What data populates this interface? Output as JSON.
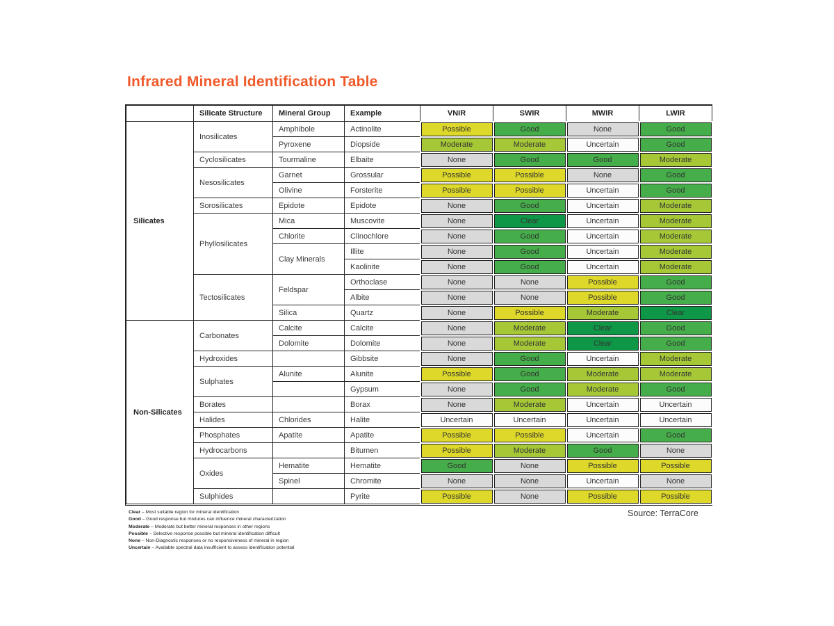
{
  "title": "Infrared Mineral Identification Table",
  "source": "Source: TerraCore",
  "colors": {
    "title-accent": "#f05a2b",
    "rating-possible": "#ddd829",
    "rating-good": "#45ad49",
    "rating-moderate": "#a6c837",
    "rating-none": "#d9d9d9",
    "rating-uncertain": "#fcfcfc",
    "rating-clear": "#0f9748"
  },
  "table": {
    "headers": {
      "category": "",
      "structure": "Silicate Structure",
      "group": "Mineral Group",
      "example": "Example",
      "vnir": "VNIR",
      "swir": "SWIR",
      "mwir": "MWIR",
      "lwir": "LWIR"
    },
    "rows": [
      {
        "category": "Silicates",
        "structure": "Inosilicates",
        "group": "Amphibole",
        "example": "Actinolite",
        "vnir": "Possible",
        "swir": "Good",
        "mwir": "None",
        "lwir": "Good"
      },
      {
        "group": "Pyroxene",
        "example": "Diopside",
        "vnir": "Moderate",
        "swir": "Moderate",
        "mwir": "Uncertain",
        "lwir": "Good"
      },
      {
        "structure": "Cyclosilicates",
        "group": "Tourmaline",
        "example": "Elbaite",
        "vnir": "None",
        "swir": "Good",
        "mwir": "Good",
        "lwir": "Moderate"
      },
      {
        "structure": "Nesosilicates",
        "group": "Garnet",
        "example": "Grossular",
        "vnir": "Possible",
        "swir": "Possible",
        "mwir": "None",
        "lwir": "Good"
      },
      {
        "group": "Olivine",
        "example": "Forsterite",
        "vnir": "Possible",
        "swir": "Possible",
        "mwir": "Uncertain",
        "lwir": "Good"
      },
      {
        "structure": "Sorosilicates",
        "group": "Epidote",
        "example": "Epidote",
        "vnir": "None",
        "swir": "Good",
        "mwir": "Uncertain",
        "lwir": "Moderate"
      },
      {
        "structure": "Phyllosilicates",
        "group": "Mica",
        "example": "Muscovite",
        "vnir": "None",
        "swir": "Clear",
        "mwir": "Uncertain",
        "lwir": "Moderate"
      },
      {
        "group": "Chlorite",
        "example": "Clinochlore",
        "vnir": "None",
        "swir": "Good",
        "mwir": "Uncertain",
        "lwir": "Moderate"
      },
      {
        "group": "Clay Minerals",
        "example": "Illite",
        "vnir": "None",
        "swir": "Good",
        "mwir": "Uncertain",
        "lwir": "Moderate"
      },
      {
        "example": "Kaolinite",
        "vnir": "None",
        "swir": "Good",
        "mwir": "Uncertain",
        "lwir": "Moderate"
      },
      {
        "structure": "Tectosilicates",
        "group": "Feldspar",
        "example": "Orthoclase",
        "vnir": "None",
        "swir": "None",
        "mwir": "Possible",
        "lwir": "Good"
      },
      {
        "example": "Albite",
        "vnir": "None",
        "swir": "None",
        "mwir": "Possible",
        "lwir": "Good"
      },
      {
        "group": "Silica",
        "example": "Quartz",
        "vnir": "None",
        "swir": "Possible",
        "mwir": "Moderate",
        "lwir": "Clear"
      },
      {
        "category": "Non-Silicates",
        "structure": "Carbonates",
        "group": "Calcite",
        "example": "Calcite",
        "vnir": "None",
        "swir": "Moderate",
        "mwir": "Clear",
        "lwir": "Good"
      },
      {
        "group": "Dolomite",
        "example": "Dolomite",
        "vnir": "None",
        "swir": "Moderate",
        "mwir": "Clear",
        "lwir": "Good"
      },
      {
        "structure": "Hydroxides",
        "group": "",
        "example": "Gibbsite",
        "vnir": "None",
        "swir": "Good",
        "mwir": "Uncertain",
        "lwir": "Moderate"
      },
      {
        "structure": "Sulphates",
        "group": "Alunite",
        "example": "Alunite",
        "vnir": "Possible",
        "swir": "Good",
        "mwir": "Moderate",
        "lwir": "Moderate"
      },
      {
        "group": "",
        "example": "Gypsum",
        "vnir": "None",
        "swir": "Good",
        "mwir": "Moderate",
        "lwir": "Good"
      },
      {
        "structure": "Borates",
        "group": "",
        "example": "Borax",
        "vnir": "None",
        "swir": "Moderate",
        "mwir": "Uncertain",
        "lwir": "Uncertain"
      },
      {
        "structure": "Halides",
        "group": "Chlorides",
        "example": "Halite",
        "vnir": "Uncertain",
        "swir": "Uncertain",
        "mwir": "Uncertain",
        "lwir": "Uncertain"
      },
      {
        "structure": "Phosphates",
        "group": "Apatite",
        "example": "Apatite",
        "vnir": "Possible",
        "swir": "Possible",
        "mwir": "Uncertain",
        "lwir": "Good"
      },
      {
        "structure": "Hydrocarbons",
        "group": "",
        "example": "Bitumen",
        "vnir": "Possible",
        "swir": "Moderate",
        "mwir": "Good",
        "lwir": "None"
      },
      {
        "structure": "Oxides",
        "group": "Hematite",
        "example": "Hematite",
        "vnir": "Good",
        "swir": "None",
        "mwir": "Possible",
        "lwir": "Possible"
      },
      {
        "group": "Spinel",
        "example": "Chromite",
        "vnir": "None",
        "swir": "None",
        "mwir": "Uncertain",
        "lwir": "None"
      },
      {
        "structure": "Sulphides",
        "group": "",
        "example": "Pyrite",
        "vnir": "Possible",
        "swir": "None",
        "mwir": "Possible",
        "lwir": "Possible"
      }
    ]
  },
  "legend": [
    {
      "term": "Clear",
      "desc": "– Most suitable region for mineral identification"
    },
    {
      "term": "Good",
      "desc": "– Good response but mixtures can influence mineral characterization"
    },
    {
      "term": "Moderate",
      "desc": "– Moderate but better mineral responses in other regions"
    },
    {
      "term": "Possible",
      "desc": "– Selective response possible but mineral identification difficult"
    },
    {
      "term": "None",
      "desc": "– Non-Diagnostic responses or no responsiveness of mineral in region"
    },
    {
      "term": "Uncertain",
      "desc": "– Available spectral data insufficient to assess identification potential"
    }
  ]
}
